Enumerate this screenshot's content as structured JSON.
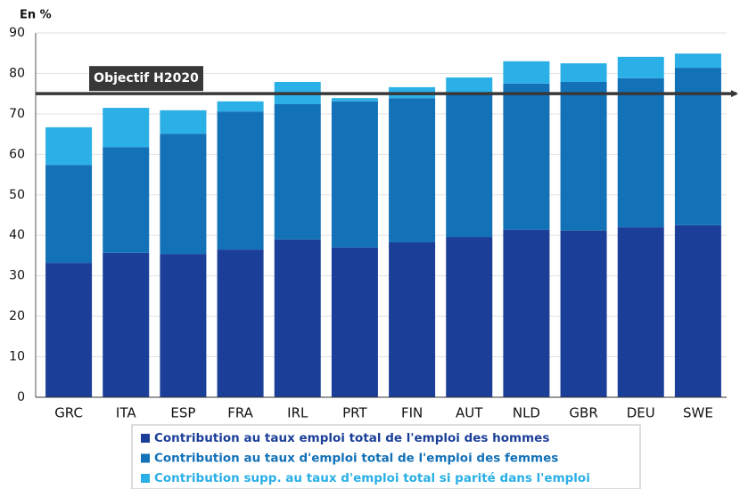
{
  "chart_data": {
    "type": "stacked-bar",
    "y_axis_label": "En %",
    "categories": [
      "GRC",
      "ITA",
      "ESP",
      "FRA",
      "IRL",
      "PRT",
      "FIN",
      "AUT",
      "NLD",
      "GBR",
      "DEU",
      "SWE"
    ],
    "series": [
      {
        "name": "Contribution au taux emploi total de l'emploi des hommes",
        "color": "#1b3f98",
        "values": [
          33.2,
          35.7,
          35.4,
          36.5,
          39.0,
          37.0,
          38.3,
          39.6,
          41.4,
          41.2,
          42.0,
          42.5
        ]
      },
      {
        "name": "Contribution au taux d'emploi total de l'emploi des femmes",
        "color": "#1271b7",
        "values": [
          24.2,
          26.1,
          29.7,
          34.1,
          33.4,
          36.1,
          35.6,
          35.4,
          36.1,
          36.7,
          36.8,
          38.9
        ]
      },
      {
        "name": "Contribution supp. au taux d'emploi total si parité dans l'emploi",
        "color": "#2aafe6",
        "values": [
          9.3,
          9.7,
          5.8,
          2.5,
          5.5,
          0.8,
          2.7,
          4.0,
          5.5,
          4.6,
          5.3,
          3.5
        ]
      }
    ],
    "target": {
      "label": "Objectif H2020",
      "value": 75
    },
    "ylim": [
      0,
      90
    ],
    "yticks": [
      0,
      10,
      20,
      30,
      40,
      50,
      60,
      70,
      80,
      90
    ],
    "grid": true
  }
}
